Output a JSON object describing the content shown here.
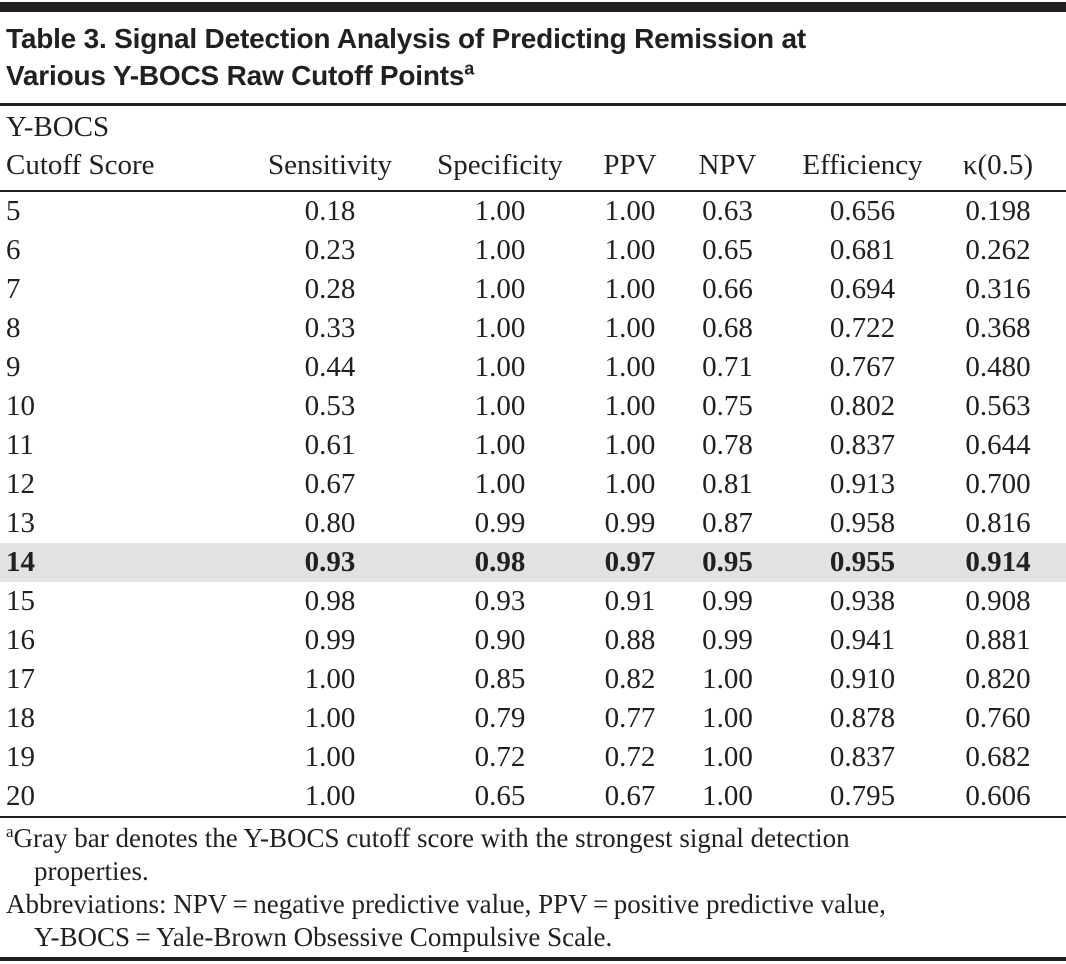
{
  "document": {
    "title": {
      "line1": "Table 3. Signal Detection Analysis of Predicting Remission at",
      "line2": "Various Y-BOCS Raw Cutoff Points",
      "superscript": "a"
    },
    "table": {
      "header": {
        "col1_line1": "Y-BOCS",
        "col1_line2": "Cutoff Score",
        "columns": [
          "Sensitivity",
          "Specificity",
          "PPV",
          "NPV",
          "Efficiency",
          "κ(0.5)"
        ]
      },
      "rows": [
        {
          "cells": [
            "5",
            "0.18",
            "1.00",
            "1.00",
            "0.63",
            "0.656",
            "0.198"
          ],
          "highlighted": false
        },
        {
          "cells": [
            "6",
            "0.23",
            "1.00",
            "1.00",
            "0.65",
            "0.681",
            "0.262"
          ],
          "highlighted": false
        },
        {
          "cells": [
            "7",
            "0.28",
            "1.00",
            "1.00",
            "0.66",
            "0.694",
            "0.316"
          ],
          "highlighted": false
        },
        {
          "cells": [
            "8",
            "0.33",
            "1.00",
            "1.00",
            "0.68",
            "0.722",
            "0.368"
          ],
          "highlighted": false
        },
        {
          "cells": [
            "9",
            "0.44",
            "1.00",
            "1.00",
            "0.71",
            "0.767",
            "0.480"
          ],
          "highlighted": false
        },
        {
          "cells": [
            "10",
            "0.53",
            "1.00",
            "1.00",
            "0.75",
            "0.802",
            "0.563"
          ],
          "highlighted": false
        },
        {
          "cells": [
            "11",
            "0.61",
            "1.00",
            "1.00",
            "0.78",
            "0.837",
            "0.644"
          ],
          "highlighted": false
        },
        {
          "cells": [
            "12",
            "0.67",
            "1.00",
            "1.00",
            "0.81",
            "0.913",
            "0.700"
          ],
          "highlighted": false
        },
        {
          "cells": [
            "13",
            "0.80",
            "0.99",
            "0.99",
            "0.87",
            "0.958",
            "0.816"
          ],
          "highlighted": false
        },
        {
          "cells": [
            "14",
            "0.93",
            "0.98",
            "0.97",
            "0.95",
            "0.955",
            "0.914"
          ],
          "highlighted": true
        },
        {
          "cells": [
            "15",
            "0.98",
            "0.93",
            "0.91",
            "0.99",
            "0.938",
            "0.908"
          ],
          "highlighted": false
        },
        {
          "cells": [
            "16",
            "0.99",
            "0.90",
            "0.88",
            "0.99",
            "0.941",
            "0.881"
          ],
          "highlighted": false
        },
        {
          "cells": [
            "17",
            "1.00",
            "0.85",
            "0.82",
            "1.00",
            "0.910",
            "0.820"
          ],
          "highlighted": false
        },
        {
          "cells": [
            "18",
            "1.00",
            "0.79",
            "0.77",
            "1.00",
            "0.878",
            "0.760"
          ],
          "highlighted": false
        },
        {
          "cells": [
            "19",
            "1.00",
            "0.72",
            "0.72",
            "1.00",
            "0.837",
            "0.682"
          ],
          "highlighted": false
        },
        {
          "cells": [
            "20",
            "1.00",
            "0.65",
            "0.67",
            "1.00",
            "0.795",
            "0.606"
          ],
          "highlighted": false
        }
      ]
    },
    "footnotes": {
      "note_a_marker": "a",
      "note_a_line1": "Gray bar denotes the Y-BOCS cutoff score with the strongest signal detection",
      "note_a_line2": "properties.",
      "abbreviations_line1": "Abbreviations: NPV = negative predictive value, PPV = positive predictive value,",
      "abbreviations_line2": "Y-BOCS = Yale-Brown Obsessive Compulsive Scale."
    },
    "colors": {
      "text": "#231f20",
      "highlight_row": "#e2e2e2",
      "rule": "#231f20"
    }
  }
}
